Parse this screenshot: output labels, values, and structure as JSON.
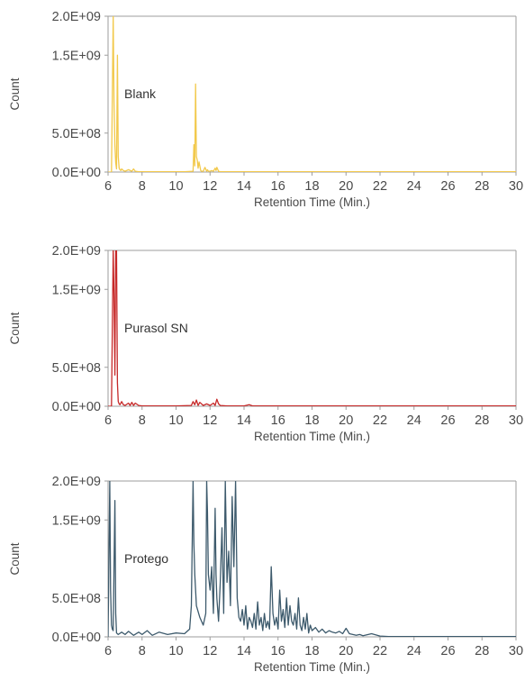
{
  "chart_data": [
    {
      "type": "line",
      "title": "",
      "xlabel": "Retention Time (Min.)",
      "ylabel": "Count",
      "annotation": "Blank",
      "color": "#f2c94c",
      "xlim": [
        6,
        30
      ],
      "ylim": [
        0,
        2000000000
      ],
      "xticks": [
        "6",
        "8",
        "10",
        "12",
        "14",
        "16",
        "18",
        "20",
        "22",
        "24",
        "26",
        "28",
        "30"
      ],
      "yticks": [
        "0.0E+00",
        "5.0E+08",
        "1.5E+09",
        "2.0E+09"
      ],
      "grid": false,
      "series": [
        {
          "x": [
            6.0,
            6.2,
            6.3,
            6.35,
            6.4,
            6.45,
            6.5,
            6.55,
            6.6,
            6.65,
            6.7,
            6.75,
            6.8,
            6.9,
            7.0,
            7.2,
            7.4,
            7.5,
            7.6,
            7.8,
            8.0,
            8.5,
            9.0,
            9.5,
            10.0,
            10.5,
            11.0,
            11.05,
            11.1,
            11.15,
            11.2,
            11.25,
            11.3,
            11.35,
            11.4,
            11.45,
            11.5,
            11.6,
            11.7,
            11.8,
            11.85,
            11.9,
            12.0,
            12.1,
            12.2,
            12.3,
            12.35,
            12.4,
            12.5,
            12.6,
            13.0,
            14.0,
            16.0,
            18.0,
            20.0,
            22.0,
            24.0,
            26.0,
            28.0,
            30.0
          ],
          "y": [
            0,
            0,
            2000000000,
            900000000,
            350000000,
            120000000,
            40000000,
            1500000000,
            200000000,
            50000000,
            30000000,
            20000000,
            40000000,
            20000000,
            10000000,
            30000000,
            10000000,
            40000000,
            10000000,
            5000000,
            5000000,
            5000000,
            5000000,
            5000000,
            5000000,
            5000000,
            10000000,
            350000000,
            80000000,
            1130000000,
            200000000,
            150000000,
            50000000,
            130000000,
            80000000,
            20000000,
            10000000,
            10000000,
            60000000,
            10000000,
            30000000,
            10000000,
            10000000,
            20000000,
            10000000,
            50000000,
            20000000,
            60000000,
            10000000,
            5000000,
            5000000,
            5000000,
            5000000,
            5000000,
            5000000,
            5000000,
            5000000,
            5000000,
            5000000,
            5000000
          ]
        }
      ]
    },
    {
      "type": "line",
      "title": "",
      "xlabel": "Retention Time (Min.)",
      "ylabel": "Count",
      "annotation": "Purasol SN",
      "color": "#c62828",
      "xlim": [
        6,
        30
      ],
      "ylim": [
        0,
        2000000000
      ],
      "xticks": [
        "6",
        "8",
        "10",
        "12",
        "14",
        "16",
        "18",
        "20",
        "22",
        "24",
        "26",
        "28",
        "30"
      ],
      "yticks": [
        "0.0E+00",
        "5.0E+08",
        "1.5E+09",
        "2.0E+09"
      ],
      "grid": false,
      "series": [
        {
          "x": [
            6.0,
            6.2,
            6.3,
            6.35,
            6.4,
            6.45,
            6.5,
            6.55,
            6.6,
            6.65,
            6.7,
            6.8,
            6.9,
            7.0,
            7.2,
            7.3,
            7.4,
            7.5,
            7.6,
            7.8,
            8.0,
            8.5,
            9.0,
            10.0,
            10.9,
            11.0,
            11.1,
            11.2,
            11.3,
            11.4,
            11.6,
            11.8,
            12.0,
            12.2,
            12.3,
            12.4,
            12.5,
            12.6,
            13.0,
            14.0,
            14.3,
            14.5,
            15.0,
            16.0,
            18.0,
            20.0,
            22.0,
            24.0,
            26.0,
            28.0,
            30.0
          ],
          "y": [
            0,
            0,
            2000000000,
            1450000000,
            400000000,
            2000000000,
            2000000000,
            300000000,
            60000000,
            30000000,
            20000000,
            60000000,
            20000000,
            10000000,
            40000000,
            10000000,
            50000000,
            10000000,
            40000000,
            10000000,
            5000000,
            5000000,
            5000000,
            5000000,
            10000000,
            60000000,
            20000000,
            80000000,
            10000000,
            50000000,
            10000000,
            30000000,
            10000000,
            40000000,
            10000000,
            90000000,
            30000000,
            10000000,
            5000000,
            5000000,
            20000000,
            5000000,
            5000000,
            5000000,
            5000000,
            5000000,
            5000000,
            5000000,
            5000000,
            5000000,
            5000000
          ]
        }
      ]
    },
    {
      "type": "line",
      "title": "",
      "xlabel": "Retention Time (Min.)",
      "ylabel": "Count",
      "annotation": "Protego",
      "color": "#3d5a6c",
      "xlim": [
        6,
        30
      ],
      "ylim": [
        0,
        2000000000
      ],
      "xticks": [
        "6",
        "8",
        "10",
        "12",
        "14",
        "16",
        "18",
        "20",
        "22",
        "24",
        "26",
        "28",
        "30"
      ],
      "yticks": [
        "0.0E+00",
        "5.0E+08",
        "1.5E+09",
        "2.0E+09"
      ],
      "grid": false,
      "series": [
        {
          "x": [
            6.0,
            6.1,
            6.15,
            6.2,
            6.25,
            6.3,
            6.4,
            6.45,
            6.5,
            6.6,
            6.8,
            7.0,
            7.2,
            7.5,
            7.8,
            8.0,
            8.3,
            8.6,
            9.0,
            9.5,
            10.0,
            10.5,
            10.8,
            10.9,
            11.0,
            11.05,
            11.1,
            11.2,
            11.4,
            11.6,
            11.75,
            11.8,
            11.85,
            11.9,
            12.0,
            12.1,
            12.2,
            12.3,
            12.35,
            12.4,
            12.5,
            12.6,
            12.7,
            12.8,
            12.9,
            13.0,
            13.1,
            13.2,
            13.3,
            13.4,
            13.5,
            13.6,
            13.7,
            13.8,
            13.9,
            14.0,
            14.1,
            14.2,
            14.3,
            14.4,
            14.5,
            14.6,
            14.7,
            14.8,
            14.9,
            15.0,
            15.1,
            15.2,
            15.3,
            15.4,
            15.5,
            15.6,
            15.7,
            15.8,
            15.9,
            16.0,
            16.1,
            16.2,
            16.3,
            16.4,
            16.5,
            16.6,
            16.7,
            16.8,
            16.9,
            17.0,
            17.1,
            17.2,
            17.3,
            17.4,
            17.5,
            17.6,
            17.7,
            17.8,
            17.9,
            18.0,
            18.2,
            18.4,
            18.6,
            18.8,
            19.0,
            19.2,
            19.4,
            19.6,
            19.8,
            20.0,
            20.2,
            20.4,
            20.6,
            20.8,
            21.0,
            21.5,
            22.0,
            22.5,
            23.0,
            24.0,
            26.0,
            28.0,
            30.0
          ],
          "y": [
            0,
            2000000000,
            600000000,
            150000000,
            100000000,
            80000000,
            1750000000,
            300000000,
            50000000,
            30000000,
            60000000,
            30000000,
            70000000,
            20000000,
            60000000,
            30000000,
            80000000,
            20000000,
            60000000,
            30000000,
            50000000,
            40000000,
            100000000,
            400000000,
            2000000000,
            1200000000,
            800000000,
            400000000,
            250000000,
            150000000,
            300000000,
            2000000000,
            1600000000,
            800000000,
            600000000,
            900000000,
            300000000,
            1650000000,
            800000000,
            500000000,
            200000000,
            700000000,
            1400000000,
            300000000,
            2000000000,
            700000000,
            1100000000,
            400000000,
            1800000000,
            900000000,
            2000000000,
            500000000,
            250000000,
            200000000,
            350000000,
            150000000,
            400000000,
            100000000,
            250000000,
            200000000,
            120000000,
            300000000,
            100000000,
            450000000,
            150000000,
            250000000,
            80000000,
            300000000,
            120000000,
            200000000,
            100000000,
            900000000,
            300000000,
            150000000,
            250000000,
            100000000,
            600000000,
            200000000,
            350000000,
            120000000,
            500000000,
            150000000,
            400000000,
            200000000,
            150000000,
            300000000,
            100000000,
            500000000,
            150000000,
            80000000,
            250000000,
            100000000,
            300000000,
            50000000,
            150000000,
            80000000,
            120000000,
            60000000,
            100000000,
            50000000,
            80000000,
            60000000,
            50000000,
            70000000,
            40000000,
            110000000,
            40000000,
            30000000,
            20000000,
            30000000,
            15000000,
            40000000,
            10000000,
            5000000,
            5000000,
            5000000,
            5000000,
            5000000,
            5000000
          ]
        }
      ]
    }
  ]
}
